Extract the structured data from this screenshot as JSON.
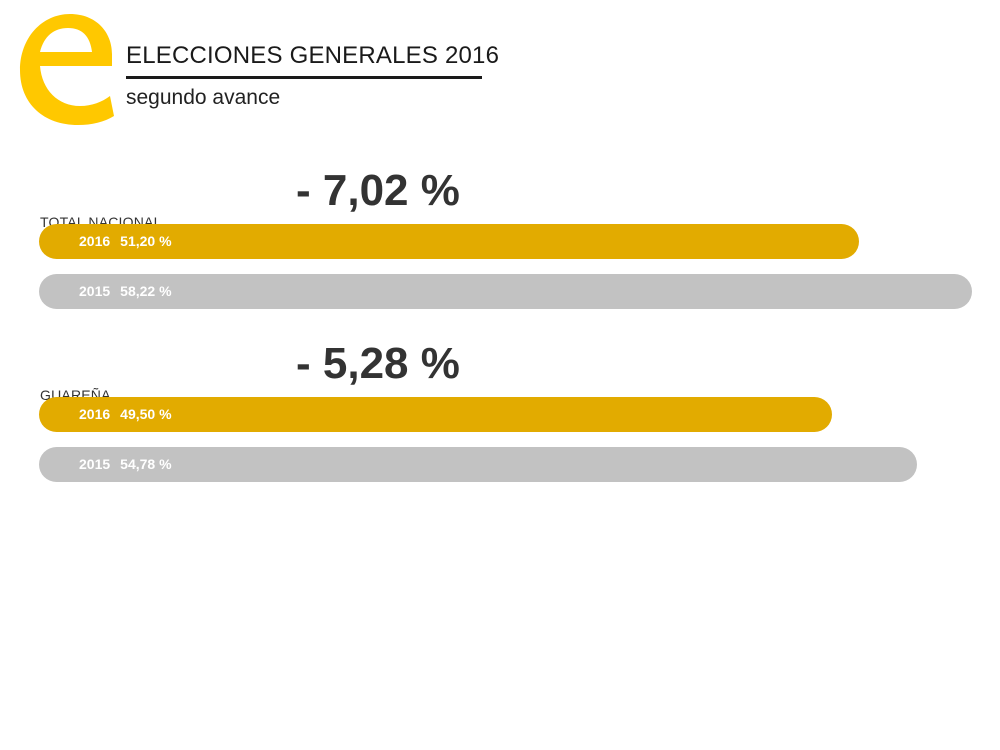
{
  "header": {
    "title": "ELECCIONES GENERALES 2016",
    "subtitle": "segundo avance"
  },
  "colors": {
    "logo": "#FFC800",
    "bar_2016": "#E2AB00",
    "bar_2015": "#C2C2C2"
  },
  "chart_data": {
    "type": "bar",
    "orientation": "horizontal",
    "xlim": [
      0,
      60
    ],
    "groups": [
      {
        "label": "TOTAL NACIONAL",
        "difference": "- 7,02 %",
        "series": [
          {
            "name": "2016",
            "value": 51.2,
            "value_label": "51,20 %"
          },
          {
            "name": "2015",
            "value": 58.22,
            "value_label": "58,22 %"
          }
        ]
      },
      {
        "label": "GUAREÑA",
        "difference": "- 5,28 %",
        "series": [
          {
            "name": "2016",
            "value": 49.5,
            "value_label": "49,50 %"
          },
          {
            "name": "2015",
            "value": 54.78,
            "value_label": "54,78 %"
          }
        ]
      }
    ]
  }
}
